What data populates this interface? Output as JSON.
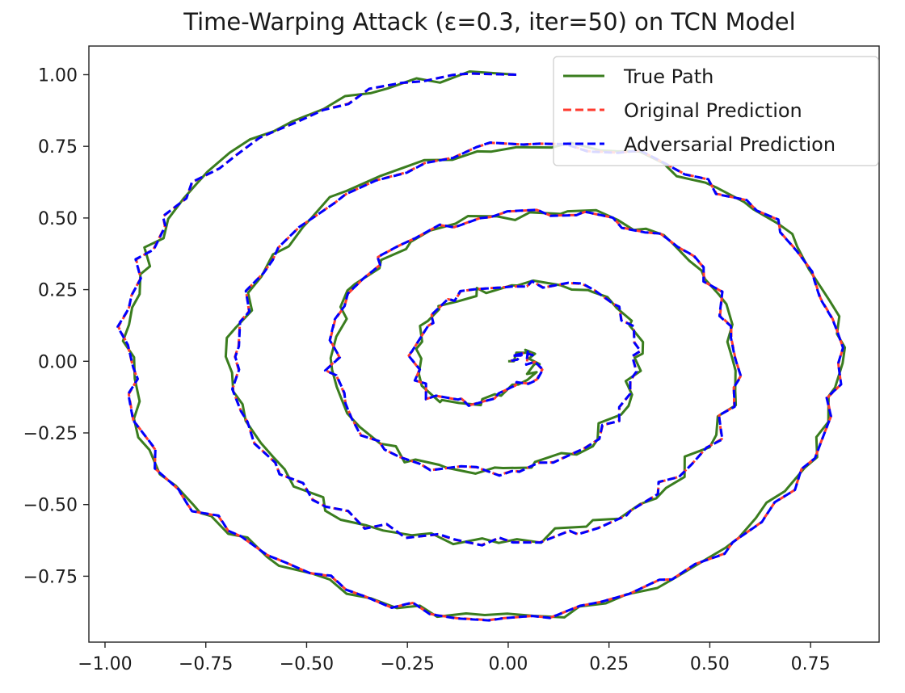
{
  "chart_data": {
    "type": "line",
    "title": "Time-Warping Attack (ε=0.3, iter=50) on TCN Model",
    "xlabel": "",
    "ylabel": "",
    "xlim": [
      -1.04,
      0.92
    ],
    "ylim": [
      -0.98,
      1.1
    ],
    "xticks": [
      -1.0,
      -0.75,
      -0.5,
      -0.25,
      0.0,
      0.25,
      0.5,
      0.75
    ],
    "yticks": [
      -0.75,
      -0.5,
      -0.25,
      0.0,
      0.25,
      0.5,
      0.75,
      1.0
    ],
    "xtick_labels": [
      "−1.00",
      "−0.75",
      "−0.50",
      "−0.25",
      "0.00",
      "0.25",
      "0.50",
      "0.75"
    ],
    "ytick_labels": [
      "−0.75",
      "−0.50",
      "−0.25",
      "0.00",
      "0.25",
      "0.50",
      "0.75",
      "1.00"
    ],
    "grid": false,
    "legend_position": "top-right",
    "series": [
      {
        "name": "True Path",
        "color": "#3a7d1e",
        "style": "solid"
      },
      {
        "name": "Original Prediction",
        "color": "#ff3b2f",
        "style": "dashed"
      },
      {
        "name": "Adversarial Prediction",
        "color": "#0000ff",
        "style": "dashed"
      }
    ],
    "path_points": [
      [
        0.02,
        1.0
      ],
      [
        -0.1,
        1.0
      ],
      [
        -0.22,
        0.98
      ],
      [
        -0.35,
        0.94
      ],
      [
        -0.47,
        0.88
      ],
      [
        -0.58,
        0.8
      ],
      [
        -0.68,
        0.72
      ],
      [
        -0.77,
        0.62
      ],
      [
        -0.85,
        0.5
      ],
      [
        -0.89,
        0.4
      ],
      [
        -0.92,
        0.3
      ],
      [
        -0.94,
        0.18
      ],
      [
        -0.95,
        0.06
      ],
      [
        -0.93,
        -0.06
      ],
      [
        -0.92,
        -0.2
      ],
      [
        -0.89,
        -0.32
      ],
      [
        -0.83,
        -0.44
      ],
      [
        -0.77,
        -0.52
      ],
      [
        -0.69,
        -0.59
      ],
      [
        -0.6,
        -0.67
      ],
      [
        -0.5,
        -0.74
      ],
      [
        -0.4,
        -0.8
      ],
      [
        -0.29,
        -0.85
      ],
      [
        -0.18,
        -0.88
      ],
      [
        -0.06,
        -0.89
      ],
      [
        0.06,
        -0.89
      ],
      [
        0.18,
        -0.86
      ],
      [
        0.3,
        -0.81
      ],
      [
        0.42,
        -0.75
      ],
      [
        0.53,
        -0.66
      ],
      [
        0.62,
        -0.56
      ],
      [
        0.7,
        -0.45
      ],
      [
        0.76,
        -0.33
      ],
      [
        0.8,
        -0.2
      ],
      [
        0.82,
        -0.08
      ],
      [
        0.83,
        0.04
      ],
      [
        0.81,
        0.16
      ],
      [
        0.77,
        0.28
      ],
      [
        0.72,
        0.39
      ],
      [
        0.66,
        0.48
      ],
      [
        0.58,
        0.56
      ],
      [
        0.49,
        0.63
      ],
      [
        0.38,
        0.7
      ],
      [
        0.27,
        0.74
      ],
      [
        0.15,
        0.76
      ],
      [
        0.03,
        0.76
      ],
      [
        -0.09,
        0.74
      ],
      [
        -0.21,
        0.7
      ],
      [
        -0.33,
        0.64
      ],
      [
        -0.43,
        0.56
      ],
      [
        -0.52,
        0.46
      ],
      [
        -0.59,
        0.36
      ],
      [
        -0.64,
        0.25
      ],
      [
        -0.67,
        0.13
      ],
      [
        -0.69,
        0.02
      ],
      [
        -0.68,
        -0.1
      ],
      [
        -0.65,
        -0.22
      ],
      [
        -0.59,
        -0.34
      ],
      [
        -0.52,
        -0.43
      ],
      [
        -0.44,
        -0.51
      ],
      [
        -0.35,
        -0.57
      ],
      [
        -0.25,
        -0.61
      ],
      [
        -0.14,
        -0.63
      ],
      [
        -0.03,
        -0.63
      ],
      [
        0.08,
        -0.62
      ],
      [
        0.18,
        -0.59
      ],
      [
        0.28,
        -0.54
      ],
      [
        0.36,
        -0.47
      ],
      [
        0.43,
        -0.39
      ],
      [
        0.49,
        -0.3
      ],
      [
        0.53,
        -0.2
      ],
      [
        0.56,
        -0.09
      ],
      [
        0.57,
        0.02
      ],
      [
        0.56,
        0.13
      ],
      [
        0.53,
        0.23
      ],
      [
        0.48,
        0.32
      ],
      [
        0.42,
        0.4
      ],
      [
        0.35,
        0.46
      ],
      [
        0.26,
        0.5
      ],
      [
        0.16,
        0.52
      ],
      [
        0.06,
        0.52
      ],
      [
        -0.04,
        0.51
      ],
      [
        -0.14,
        0.48
      ],
      [
        -0.23,
        0.43
      ],
      [
        -0.31,
        0.36
      ],
      [
        -0.37,
        0.28
      ],
      [
        -0.41,
        0.18
      ],
      [
        -0.43,
        0.08
      ],
      [
        -0.44,
        -0.02
      ],
      [
        -0.42,
        -0.12
      ],
      [
        -0.38,
        -0.21
      ],
      [
        -0.33,
        -0.28
      ],
      [
        -0.26,
        -0.34
      ],
      [
        -0.18,
        -0.37
      ],
      [
        -0.09,
        -0.38
      ],
      [
        0.0,
        -0.38
      ],
      [
        0.08,
        -0.36
      ],
      [
        0.16,
        -0.32
      ],
      [
        0.22,
        -0.27
      ],
      [
        0.27,
        -0.2
      ],
      [
        0.3,
        -0.12
      ],
      [
        0.32,
        -0.04
      ],
      [
        0.32,
        0.04
      ],
      [
        0.31,
        0.12
      ],
      [
        0.27,
        0.19
      ],
      [
        0.22,
        0.24
      ],
      [
        0.15,
        0.26
      ],
      [
        0.07,
        0.27
      ],
      [
        0.0,
        0.27
      ],
      [
        -0.07,
        0.25
      ],
      [
        -0.13,
        0.22
      ],
      [
        -0.18,
        0.17
      ],
      [
        -0.21,
        0.11
      ],
      [
        -0.23,
        0.04
      ],
      [
        -0.23,
        -0.03
      ],
      [
        -0.21,
        -0.09
      ],
      [
        -0.17,
        -0.13
      ],
      [
        -0.12,
        -0.14
      ],
      [
        -0.06,
        -0.13
      ],
      [
        -0.01,
        -0.11
      ],
      [
        0.03,
        -0.08
      ],
      [
        0.06,
        -0.05
      ],
      [
        0.07,
        -0.01
      ],
      [
        0.06,
        0.02
      ],
      [
        0.04,
        0.03
      ],
      [
        0.02,
        0.02
      ],
      [
        0.0,
        0.0
      ]
    ]
  }
}
